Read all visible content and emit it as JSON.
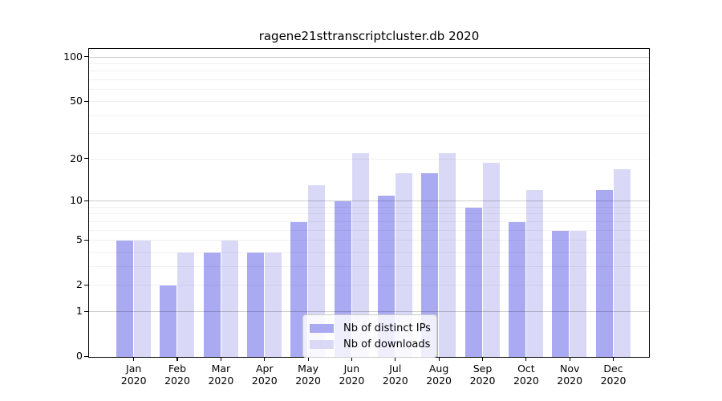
{
  "title": "ragene21sttranscriptcluster.db 2020",
  "colors": {
    "ips_bar": "#aaaaf3",
    "downloads_bar": "#d9d9f7",
    "axis": "#000000",
    "major_grid": "#cccccc",
    "minor_grid": "#efefef",
    "legend_border": "#cccccc"
  },
  "legend": {
    "items": [
      {
        "label": "Nb of distinct IPs",
        "series": "ips"
      },
      {
        "label": "Nb of downloads",
        "series": "downloads"
      }
    ]
  },
  "y_axis": {
    "tick_labels": [
      "0",
      "1",
      "2",
      "5",
      "10",
      "20",
      "50",
      "100"
    ],
    "tick_values": [
      0,
      1,
      2,
      5,
      10,
      20,
      50,
      100
    ],
    "major_gridlines": [
      1,
      10,
      100
    ],
    "minor_gridlines": [
      2,
      3,
      4,
      5,
      6,
      7,
      8,
      9,
      20,
      30,
      40,
      50,
      60,
      70,
      80,
      90
    ]
  },
  "x_axis": {
    "categories": [
      {
        "month": "Jan",
        "year": "2020"
      },
      {
        "month": "Feb",
        "year": "2020"
      },
      {
        "month": "Mar",
        "year": "2020"
      },
      {
        "month": "Apr",
        "year": "2020"
      },
      {
        "month": "May",
        "year": "2020"
      },
      {
        "month": "Jun",
        "year": "2020"
      },
      {
        "month": "Jul",
        "year": "2020"
      },
      {
        "month": "Aug",
        "year": "2020"
      },
      {
        "month": "Sep",
        "year": "2020"
      },
      {
        "month": "Oct",
        "year": "2020"
      },
      {
        "month": "Nov",
        "year": "2020"
      },
      {
        "month": "Dec",
        "year": "2020"
      }
    ]
  },
  "chart_data": {
    "type": "bar",
    "title": "ragene21sttranscriptcluster.db 2020",
    "categories": [
      "Jan 2020",
      "Feb 2020",
      "Mar 2020",
      "Apr 2020",
      "May 2020",
      "Jun 2020",
      "Jul 2020",
      "Aug 2020",
      "Sep 2020",
      "Oct 2020",
      "Nov 2020",
      "Dec 2020"
    ],
    "series": [
      {
        "name": "Nb of distinct IPs",
        "color": "#aaaaf3",
        "values": [
          5,
          2,
          4,
          4,
          7,
          10,
          11,
          16,
          9,
          7,
          6,
          12
        ]
      },
      {
        "name": "Nb of downloads",
        "color": "#d9d9f7",
        "values": [
          5,
          4,
          5,
          4,
          13,
          22,
          16,
          22,
          19,
          12,
          6,
          17
        ]
      }
    ],
    "xlabel": "",
    "ylabel": "",
    "yscale": "log1p",
    "yticks": [
      0,
      1,
      2,
      5,
      10,
      20,
      50,
      100
    ],
    "ylim": [
      0,
      112.6
    ],
    "grid": true,
    "legend_position": "lower-center-inside"
  }
}
